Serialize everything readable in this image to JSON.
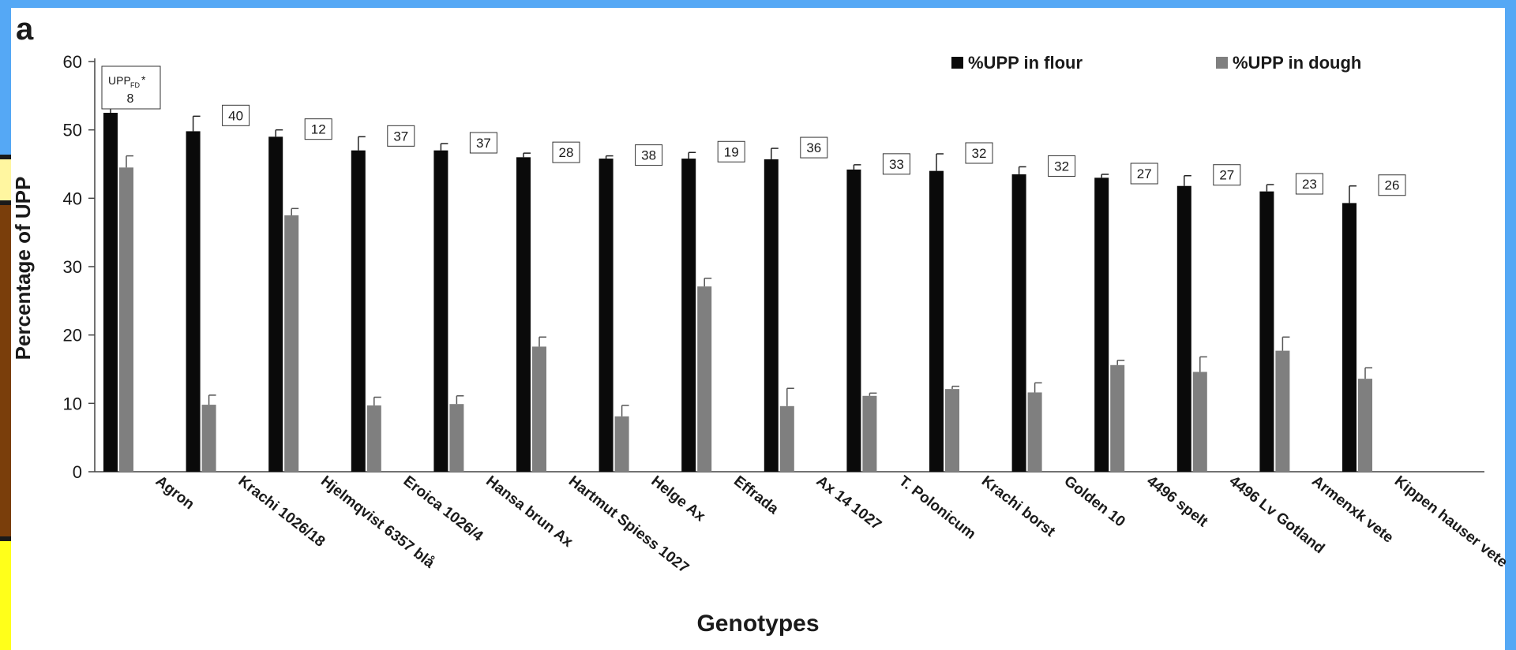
{
  "panel_label": "a",
  "colors": {
    "flour": "#0a0a0a",
    "dough": "#7f7f7f",
    "frame": "#55a8f5"
  },
  "chart_data": {
    "type": "bar",
    "title": "",
    "xlabel": "Genotypes",
    "ylabel": "Percentage of UPP",
    "ylim": [
      0,
      60
    ],
    "yticks": [
      0,
      10,
      20,
      30,
      40,
      50,
      60
    ],
    "grid": false,
    "legend_position": "top-right",
    "categories": [
      "Agron",
      "Krachi 1026/18",
      "Hjelmqvist 6357 blå",
      "Eroica  1026/4",
      "Hansa brun  Ax",
      "Hartmut  Spiess 1027",
      "Helge  Ax",
      "Effrada",
      "Ax 14  1027",
      "T. Polonicum",
      "Krachi borst",
      "Golden  10",
      "4496 spelt",
      "4496 Lv Gotland",
      "Armenxk  vete",
      "Kippen hauser vete"
    ],
    "series": [
      {
        "name": "%UPP in flour",
        "values": [
          52.5,
          49.8,
          49.0,
          47.0,
          47.0,
          46.0,
          45.8,
          45.8,
          45.7,
          44.2,
          44.0,
          43.5,
          43.0,
          41.8,
          41.0,
          39.3
        ],
        "errors": [
          2.2,
          2.2,
          1.0,
          2.0,
          1.0,
          0.6,
          0.4,
          0.9,
          1.6,
          0.7,
          2.5,
          1.1,
          0.5,
          1.5,
          1.0,
          2.5
        ]
      },
      {
        "name": "%UPP in dough",
        "values": [
          44.5,
          9.8,
          37.5,
          9.7,
          9.9,
          18.3,
          8.1,
          27.1,
          9.6,
          11.1,
          12.1,
          11.6,
          15.6,
          14.6,
          17.7,
          13.6
        ],
        "errors": [
          1.7,
          1.4,
          1.0,
          1.2,
          1.2,
          1.4,
          1.6,
          1.2,
          2.6,
          0.4,
          0.4,
          1.4,
          0.7,
          2.2,
          2.0,
          1.6
        ]
      }
    ],
    "annotations": {
      "first_box_label_main": "UPP",
      "first_box_label_sub": "FD",
      "first_box_label_star": "*",
      "values": [
        "8",
        "40",
        "12",
        "37",
        "37",
        "28",
        "38",
        "19",
        "36",
        "33",
        "32",
        "32",
        "27",
        "27",
        "23",
        "26"
      ]
    }
  }
}
